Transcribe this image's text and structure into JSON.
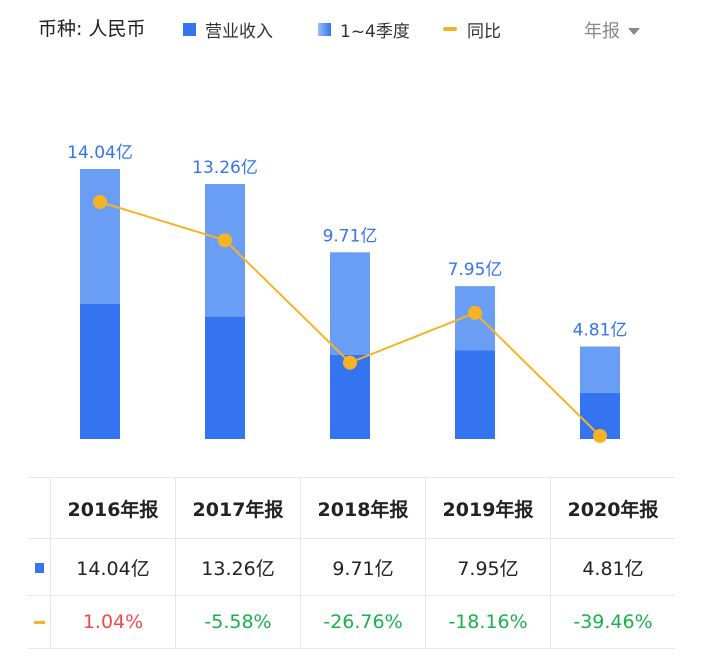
{
  "header": {
    "currency_label": "币种: 人民币",
    "legend": {
      "revenue": "营业收入",
      "quarters": "1~4季度",
      "yoy": "同比"
    },
    "period_selected": "年报"
  },
  "colors": {
    "revenue_bar": "#3574f0",
    "quarter_bar": "#6a9ef5",
    "yoy_line": "#f6b324",
    "positive": "#f04b4b",
    "negative": "#19b34c"
  },
  "chart_data": {
    "type": "bar",
    "categories": [
      "2016年报",
      "2017年报",
      "2018年报",
      "2019年报",
      "2020年报"
    ],
    "series": [
      {
        "name": "营业收入",
        "values": [
          14.04,
          13.26,
          9.71,
          7.95,
          4.81
        ]
      },
      {
        "name": "同比",
        "values": [
          1.04,
          -5.58,
          -26.76,
          -18.16,
          -39.46
        ]
      }
    ],
    "data_labels": [
      "14.04亿",
      "13.26亿",
      "9.71亿",
      "7.95亿",
      "4.81亿"
    ]
  },
  "table": {
    "headers": [
      "2016年报",
      "2017年报",
      "2018年报",
      "2019年报",
      "2020年报"
    ],
    "revenue_row": [
      "14.04亿",
      "13.26亿",
      "9.71亿",
      "7.95亿",
      "4.81亿"
    ],
    "yoy_row": [
      "1.04%",
      "-5.58%",
      "-26.76%",
      "-18.16%",
      "-39.46%"
    ]
  }
}
